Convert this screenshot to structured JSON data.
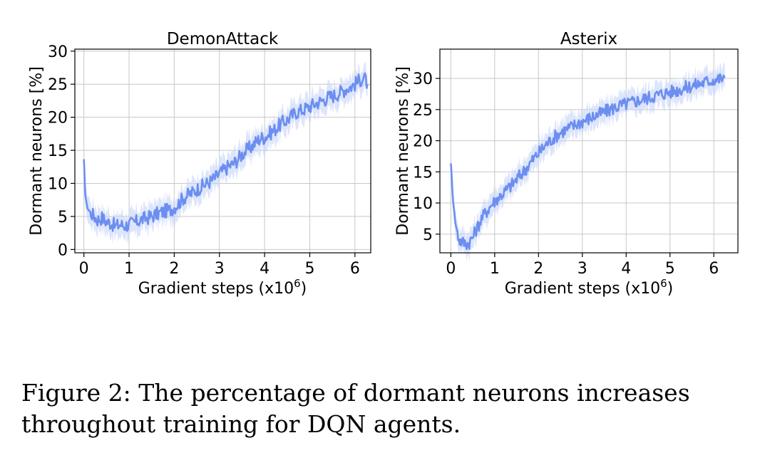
{
  "caption": {
    "label": "Figure 2:",
    "text": "The percentage of dormant neurons increases throughout training for DQN agents."
  },
  "colors": {
    "line": "#6c8ef0",
    "band": "#c5d3fa",
    "grid": "#c8c8c8",
    "frame": "#000000"
  },
  "chart_data": [
    {
      "type": "line",
      "title": "DemonAttack",
      "xlabel": "Gradient steps (x10",
      "xlabel_exp": "6",
      "xlabel_close": ")",
      "ylabel": "Dormant neurons [%]",
      "xlim": [
        -0.2,
        6.35
      ],
      "ylim": [
        -0.5,
        30.3
      ],
      "xticks": [
        0,
        1,
        2,
        3,
        4,
        5,
        6
      ],
      "yticks": [
        0,
        5,
        10,
        15,
        20,
        25,
        30
      ],
      "grid": true,
      "series": [
        {
          "x": [
            0.0,
            0.03,
            0.06,
            0.1,
            0.2,
            0.3,
            0.4,
            0.5,
            0.6,
            0.7,
            0.8,
            0.9,
            1.0,
            1.1,
            1.2,
            1.3,
            1.4,
            1.5,
            1.6,
            1.7,
            1.8,
            1.9,
            2.0,
            2.1,
            2.2,
            2.3,
            2.4,
            2.5,
            2.6,
            2.7,
            2.8,
            2.9,
            3.0,
            3.1,
            3.2,
            3.3,
            3.4,
            3.5,
            3.6,
            3.7,
            3.8,
            3.9,
            4.0,
            4.1,
            4.2,
            4.3,
            4.4,
            4.5,
            4.6,
            4.7,
            4.8,
            4.9,
            5.0,
            5.1,
            5.2,
            5.3,
            5.4,
            5.5,
            5.6,
            5.7,
            5.8,
            5.9,
            6.0,
            6.1,
            6.2,
            6.28
          ],
          "values": [
            13.5,
            8.5,
            6.8,
            6.0,
            5.2,
            4.5,
            4.8,
            4.2,
            4.0,
            3.5,
            3.8,
            3.6,
            3.8,
            4.0,
            4.3,
            4.6,
            4.8,
            5.0,
            5.3,
            5.6,
            5.8,
            6.0,
            6.4,
            7.0,
            7.8,
            8.2,
            8.6,
            9.1,
            9.5,
            9.9,
            10.3,
            10.8,
            11.5,
            12.0,
            12.6,
            12.9,
            13.6,
            14.4,
            15.0,
            15.5,
            16.2,
            16.8,
            17.0,
            17.5,
            18.0,
            18.6,
            19.2,
            19.6,
            20.2,
            20.8,
            21.0,
            21.3,
            21.6,
            22.0,
            22.3,
            22.6,
            23.0,
            23.2,
            23.5,
            23.9,
            24.3,
            24.6,
            25.0,
            25.6,
            26.0,
            25.0
          ]
        }
      ]
    },
    {
      "type": "line",
      "title": "Asterix",
      "xlabel": "Gradient steps (x10",
      "xlabel_exp": "6",
      "xlabel_close": ")",
      "ylabel": "Dormant neurons [%]",
      "xlim": [
        -0.25,
        6.55
      ],
      "ylim": [
        2.0,
        34.7
      ],
      "xticks": [
        0,
        1,
        2,
        3,
        4,
        5,
        6
      ],
      "yticks": [
        5,
        10,
        15,
        20,
        25,
        30
      ],
      "grid": true,
      "series": [
        {
          "x": [
            0.0,
            0.02,
            0.05,
            0.1,
            0.15,
            0.2,
            0.3,
            0.4,
            0.5,
            0.6,
            0.7,
            0.8,
            0.9,
            1.0,
            1.1,
            1.2,
            1.3,
            1.4,
            1.5,
            1.6,
            1.7,
            1.8,
            1.9,
            2.0,
            2.1,
            2.2,
            2.3,
            2.4,
            2.5,
            2.6,
            2.7,
            2.8,
            2.9,
            3.0,
            3.1,
            3.2,
            3.3,
            3.4,
            3.5,
            3.6,
            3.7,
            3.8,
            3.9,
            4.0,
            4.1,
            4.2,
            4.3,
            4.4,
            4.5,
            4.6,
            4.7,
            4.8,
            4.9,
            5.0,
            5.1,
            5.2,
            5.3,
            5.4,
            5.5,
            5.6,
            5.7,
            5.8,
            5.9,
            6.0,
            6.1,
            6.2,
            6.25
          ],
          "values": [
            16.5,
            14.0,
            10.5,
            7.0,
            5.0,
            4.0,
            3.6,
            3.5,
            4.5,
            6.0,
            7.5,
            8.5,
            9.5,
            10.3,
            11.0,
            11.6,
            12.3,
            13.0,
            13.8,
            14.6,
            15.4,
            16.3,
            17.2,
            18.0,
            18.8,
            19.6,
            20.2,
            20.8,
            21.3,
            21.7,
            22.0,
            22.4,
            22.8,
            23.1,
            23.4,
            23.7,
            24.0,
            24.3,
            24.6,
            24.9,
            25.2,
            25.5,
            25.7,
            25.9,
            26.1,
            26.3,
            26.5,
            26.7,
            26.9,
            27.1,
            27.3,
            27.5,
            27.7,
            27.8,
            28.0,
            28.2,
            28.4,
            28.6,
            28.8,
            29.0,
            29.2,
            29.4,
            29.6,
            29.8,
            29.9,
            30.0,
            30.1
          ]
        }
      ]
    }
  ]
}
